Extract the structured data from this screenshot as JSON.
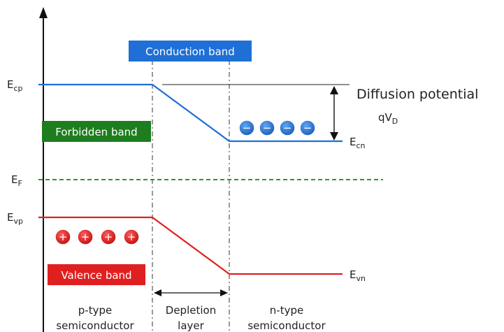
{
  "diagram": {
    "bands": {
      "conduction": "Conduction band",
      "forbidden": "Forbidden band",
      "valence": "Valence band"
    },
    "levels": {
      "ecp": {
        "main": "E",
        "sub": "cp"
      },
      "ecn": {
        "main": "E",
        "sub": "cn"
      },
      "ef": {
        "main": "E",
        "sub": "F"
      },
      "evp": {
        "main": "E",
        "sub": "vp"
      },
      "evn": {
        "main": "E",
        "sub": "vn"
      }
    },
    "diffusion": {
      "title": "Diffusion potential",
      "symbol_main": "qV",
      "symbol_sub": "D"
    },
    "regions": {
      "p_line1": "p-type",
      "p_line2": "semiconductor",
      "depletion_line1": "Depletion",
      "depletion_line2": "layer",
      "n_line1": "n-type",
      "n_line2": "semiconductor"
    },
    "carriers": {
      "electron_symbol": "−",
      "hole_symbol": "+",
      "electron_count": 4,
      "hole_count": 4
    },
    "colors": {
      "conduction": "#1f6fd6",
      "valence": "#e02020",
      "fermi": "#2a9a2a",
      "forbidden_box": "#1e7d1e",
      "axis": "#111111"
    }
  }
}
